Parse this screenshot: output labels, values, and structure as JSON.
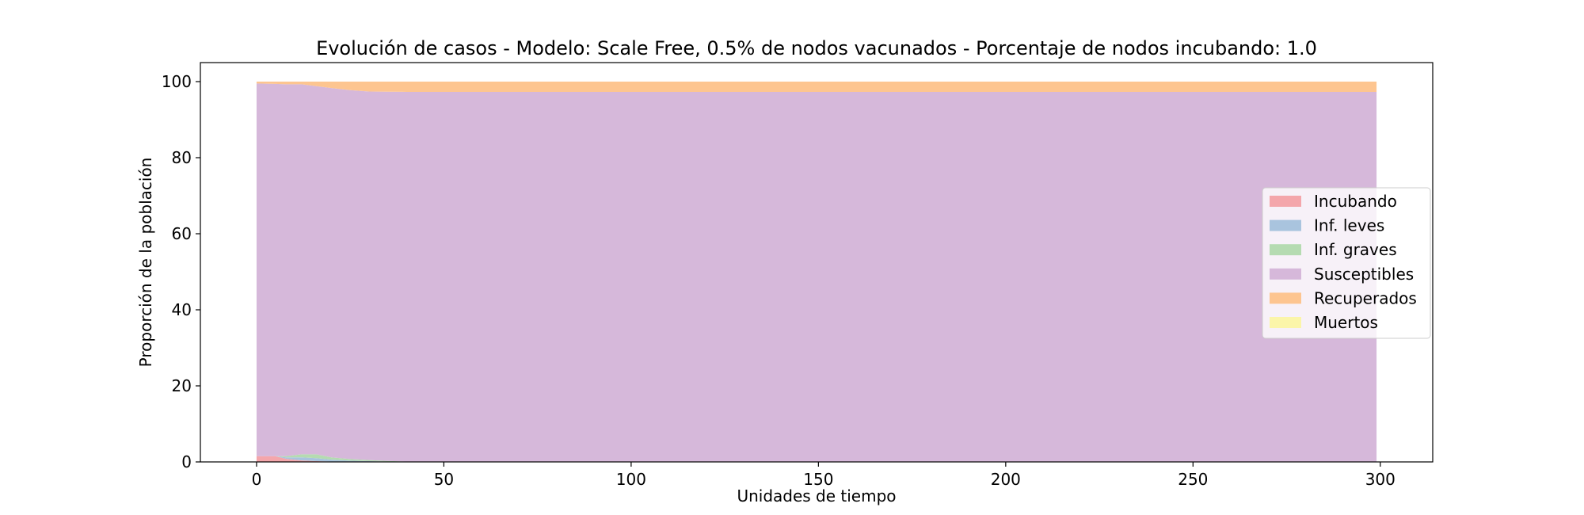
{
  "chart_data": {
    "type": "area",
    "stacked": true,
    "title": "Evolución de casos - Modelo: Scale Free, 0.5% de nodos vacunados - Porcentaje de nodos incubando: 1.0",
    "xlabel": "Unidades de tiempo",
    "ylabel": "Proporción de la población",
    "xlim": [
      -15,
      314
    ],
    "ylim": [
      0,
      105
    ],
    "xticks": [
      0,
      50,
      100,
      150,
      200,
      250,
      300
    ],
    "yticks": [
      0,
      20,
      40,
      60,
      80,
      100
    ],
    "grid": false,
    "legend_position": "center-right",
    "x": [
      0,
      5,
      8,
      12,
      16,
      20,
      25,
      30,
      35,
      40,
      50,
      299
    ],
    "series": [
      {
        "name": "Incubando",
        "color": "#f4a6ab",
        "values": [
          1.5,
          1.5,
          0.8,
          0.4,
          0.2,
          0.1,
          0.05,
          0,
          0,
          0,
          0,
          0
        ]
      },
      {
        "name": "Inf. leves",
        "color": "#a9c4de",
        "values": [
          0,
          0,
          0.4,
          0.8,
          0.8,
          0.5,
          0.3,
          0.2,
          0.1,
          0.05,
          0,
          0
        ]
      },
      {
        "name": "Inf. graves",
        "color": "#b5dbb1",
        "values": [
          0,
          0,
          0.3,
          0.8,
          1.0,
          0.6,
          0.4,
          0.3,
          0.15,
          0.05,
          0,
          0
        ]
      },
      {
        "name": "Susceptibles",
        "color": "#d6b8da",
        "values": [
          98.0,
          97.9,
          97.8,
          97.3,
          96.8,
          97.1,
          97.0,
          96.9,
          97.1,
          97.2,
          97.3,
          97.3
        ]
      },
      {
        "name": "Recuperados",
        "color": "#fdc590",
        "values": [
          0.5,
          0.6,
          0.7,
          0.7,
          1.2,
          1.7,
          2.25,
          2.6,
          2.65,
          2.7,
          2.7,
          2.7
        ]
      },
      {
        "name": "Muertos",
        "color": "#fbf5a9",
        "values": [
          0,
          0,
          0,
          0,
          0,
          0,
          0,
          0,
          0,
          0,
          0,
          0
        ]
      }
    ]
  }
}
